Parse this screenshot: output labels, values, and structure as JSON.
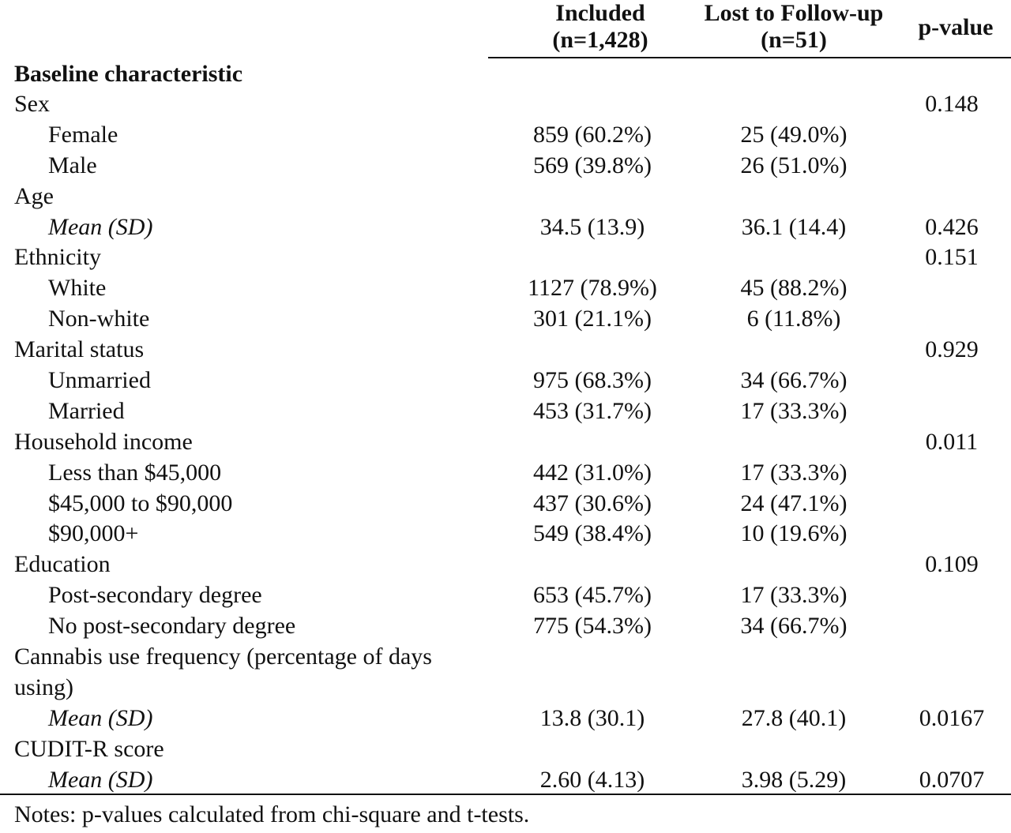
{
  "table": {
    "columns": {
      "included": "Included (n=1,428)",
      "lost": "Lost to Follow-up (n=51)",
      "p_value": "p-value"
    },
    "section_title": "Baseline characteristic",
    "rows": [
      {
        "label": "Sex",
        "included": "",
        "lost": "",
        "p": "0.148",
        "level": 0
      },
      {
        "label": "Female",
        "included": "859 (60.2%)",
        "lost": "25 (49.0%)",
        "p": "",
        "level": 1
      },
      {
        "label": "Male",
        "included": "569 (39.8%)",
        "lost": "26 (51.0%)",
        "p": "",
        "level": 1
      },
      {
        "label": "Age",
        "included": "",
        "lost": "",
        "p": "",
        "level": 0
      },
      {
        "label": "Mean (SD)",
        "included": "34.5 (13.9)",
        "lost": "36.1 (14.4)",
        "p": "0.426",
        "level": 1,
        "italic": true
      },
      {
        "label": "Ethnicity",
        "included": "",
        "lost": "",
        "p": "0.151",
        "level": 0
      },
      {
        "label": "White",
        "included": "1127 (78.9%)",
        "lost": "45 (88.2%)",
        "p": "",
        "level": 1
      },
      {
        "label": "Non-white",
        "included": "301 (21.1%)",
        "lost": "6 (11.8%)",
        "p": "",
        "level": 1
      },
      {
        "label": "Marital status",
        "included": "",
        "lost": "",
        "p": "0.929",
        "level": 0
      },
      {
        "label": "Unmarried",
        "included": "975 (68.3%)",
        "lost": "34 (66.7%)",
        "p": "",
        "level": 1
      },
      {
        "label": "Married",
        "included": "453 (31.7%)",
        "lost": "17 (33.3%)",
        "p": "",
        "level": 1
      },
      {
        "label": "Household income",
        "included": "",
        "lost": "",
        "p": "0.011",
        "level": 0
      },
      {
        "label": "Less than $45,000",
        "included": "442 (31.0%)",
        "lost": "17 (33.3%)",
        "p": "",
        "level": 1
      },
      {
        "label": "$45,000 to $90,000",
        "included": "437 (30.6%)",
        "lost": "24 (47.1%)",
        "p": "",
        "level": 1
      },
      {
        "label": "$90,000+",
        "included": "549 (38.4%)",
        "lost": "10 (19.6%)",
        "p": "",
        "level": 1
      },
      {
        "label": "Education",
        "included": "",
        "lost": "",
        "p": "0.109",
        "level": 0
      },
      {
        "label": "Post-secondary degree",
        "included": "653 (45.7%)",
        "lost": "17 (33.3%)",
        "p": "",
        "level": 1
      },
      {
        "label": "No post-secondary degree",
        "included": "775 (54.3%)",
        "lost": "34 (66.7%)",
        "p": "",
        "level": 1
      },
      {
        "label": "Cannabis use frequency (percentage of days using)",
        "included": "",
        "lost": "",
        "p": "",
        "level": 0,
        "tall": true
      },
      {
        "label": "Mean (SD)",
        "included": "13.8 (30.1)",
        "lost": "27.8 (40.1)",
        "p": "0.0167",
        "level": 1,
        "italic": true
      },
      {
        "label": "CUDIT-R score",
        "included": "",
        "lost": "",
        "p": "",
        "level": 0
      },
      {
        "label": "Mean (SD)",
        "included": "2.60 (4.13)",
        "lost": "3.98 (5.29)",
        "p": "0.0707",
        "level": 1,
        "italic": true
      }
    ],
    "notes": "Notes: p-values calculated from chi-square and t-tests."
  }
}
